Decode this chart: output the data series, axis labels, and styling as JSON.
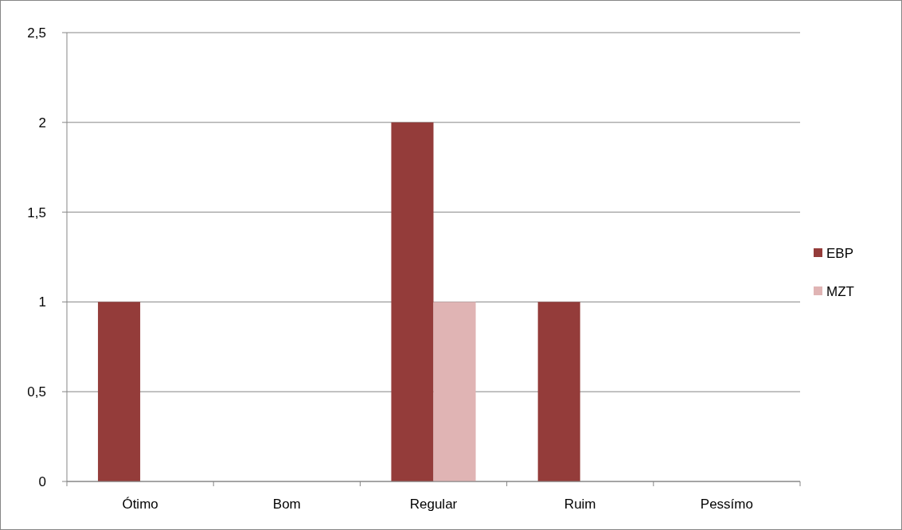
{
  "chart_data": {
    "type": "bar",
    "categories": [
      "Ótimo",
      "Bom",
      "Regular",
      "Ruim",
      "Pessímo"
    ],
    "series": [
      {
        "name": "EBP",
        "color": "#943c3a",
        "values": [
          1,
          0,
          2,
          1,
          0
        ]
      },
      {
        "name": "MZT",
        "color": "#e0b4b4",
        "values": [
          0,
          0,
          1,
          0,
          0
        ]
      }
    ],
    "ylim": [
      0,
      2.5
    ],
    "yticks": [
      0,
      {
        "value": 0.5,
        "label": "0,5"
      },
      1,
      {
        "value": 1.5,
        "label": "1,5"
      },
      2,
      {
        "value": 2.5,
        "label": "2,5"
      }
    ],
    "grid": "y",
    "legend": "right"
  }
}
